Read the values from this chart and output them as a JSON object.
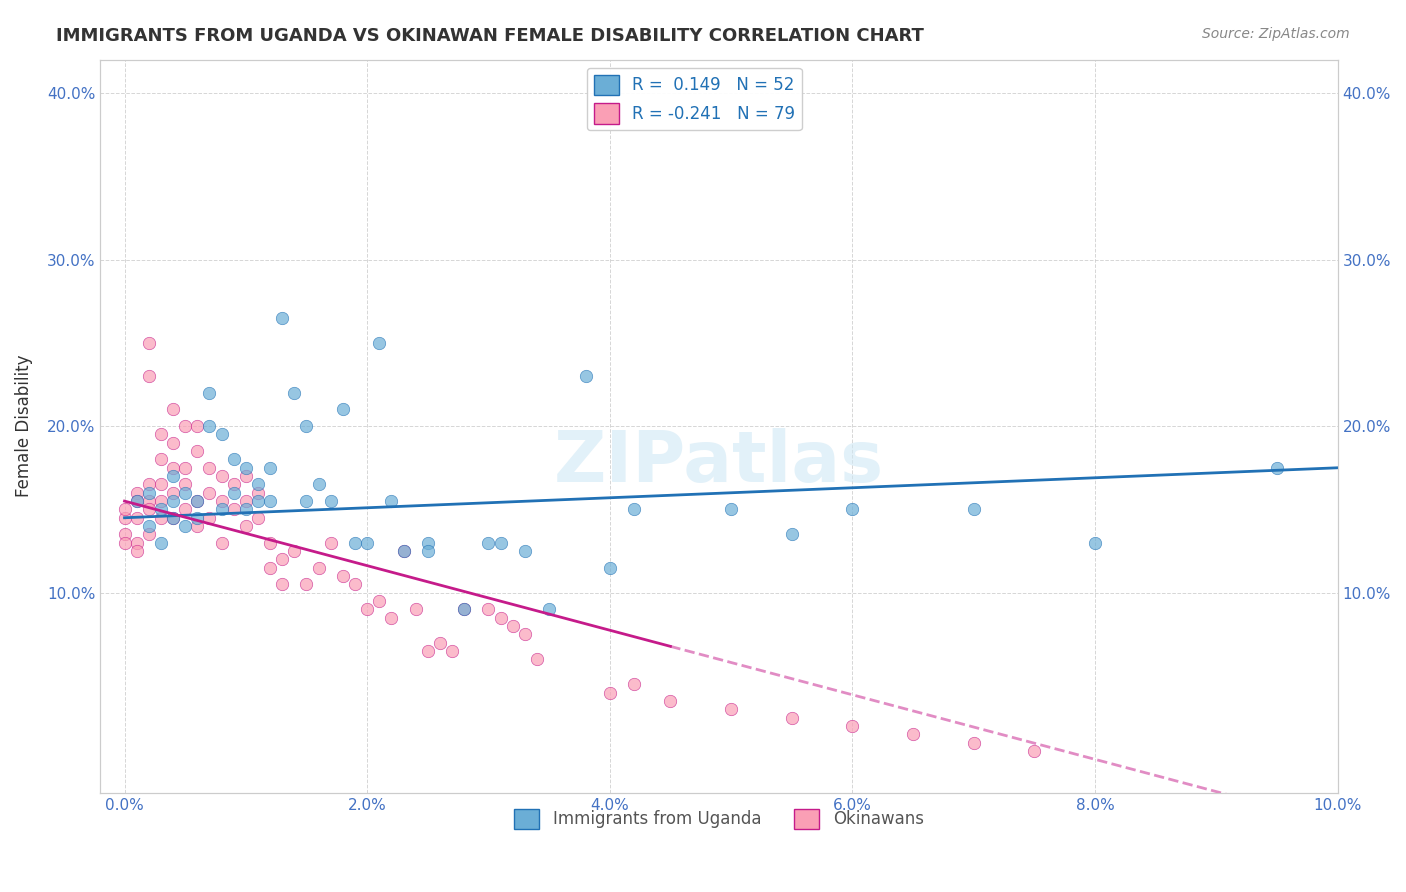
{
  "title": "IMMIGRANTS FROM UGANDA VS OKINAWAN FEMALE DISABILITY CORRELATION CHART",
  "source": "Source: ZipAtlas.com",
  "xlabel": "",
  "ylabel": "Female Disability",
  "xlim": [
    0.0,
    0.1
  ],
  "ylim": [
    0.0,
    0.42
  ],
  "yticks": [
    0.1,
    0.2,
    0.3,
    0.4
  ],
  "ytick_labels": [
    "10.0%",
    "20.0%",
    "30.0%",
    "40.0%"
  ],
  "xticks": [
    0.0,
    0.02,
    0.04,
    0.06,
    0.08,
    0.1
  ],
  "xtick_labels": [
    "0.0%",
    "2.0%",
    "4.0%",
    "6.0%",
    "8.0%",
    "10.0%"
  ],
  "watermark": "ZIPatlas",
  "legend_labels": [
    "Immigrants from Uganda",
    "Okinawans"
  ],
  "r_uganda": 0.149,
  "n_uganda": 52,
  "r_okinawan": -0.241,
  "n_okinawan": 79,
  "uganda_color": "#6baed6",
  "okinawan_color": "#fa9fb5",
  "uganda_color_dark": "#2171b5",
  "okinawan_color_dark": "#c51b8a",
  "uganda_scatter": {
    "x": [
      0.001,
      0.002,
      0.002,
      0.003,
      0.003,
      0.004,
      0.004,
      0.004,
      0.005,
      0.005,
      0.006,
      0.006,
      0.007,
      0.007,
      0.008,
      0.008,
      0.009,
      0.009,
      0.01,
      0.01,
      0.011,
      0.011,
      0.012,
      0.012,
      0.013,
      0.014,
      0.015,
      0.015,
      0.016,
      0.017,
      0.018,
      0.019,
      0.02,
      0.021,
      0.022,
      0.023,
      0.025,
      0.025,
      0.028,
      0.03,
      0.031,
      0.033,
      0.035,
      0.038,
      0.04,
      0.042,
      0.05,
      0.055,
      0.06,
      0.07,
      0.08,
      0.095
    ],
    "y": [
      0.155,
      0.16,
      0.14,
      0.15,
      0.13,
      0.145,
      0.155,
      0.17,
      0.14,
      0.16,
      0.155,
      0.145,
      0.2,
      0.22,
      0.195,
      0.15,
      0.18,
      0.16,
      0.175,
      0.15,
      0.165,
      0.155,
      0.155,
      0.175,
      0.265,
      0.22,
      0.2,
      0.155,
      0.165,
      0.155,
      0.21,
      0.13,
      0.13,
      0.25,
      0.155,
      0.125,
      0.13,
      0.125,
      0.09,
      0.13,
      0.13,
      0.125,
      0.09,
      0.23,
      0.115,
      0.15,
      0.15,
      0.135,
      0.15,
      0.15,
      0.13,
      0.175
    ]
  },
  "okinawan_scatter": {
    "x": [
      0.0,
      0.0,
      0.0,
      0.0,
      0.001,
      0.001,
      0.001,
      0.001,
      0.001,
      0.002,
      0.002,
      0.002,
      0.002,
      0.002,
      0.002,
      0.003,
      0.003,
      0.003,
      0.003,
      0.003,
      0.004,
      0.004,
      0.004,
      0.004,
      0.004,
      0.005,
      0.005,
      0.005,
      0.005,
      0.006,
      0.006,
      0.006,
      0.006,
      0.007,
      0.007,
      0.007,
      0.008,
      0.008,
      0.008,
      0.009,
      0.009,
      0.01,
      0.01,
      0.01,
      0.011,
      0.011,
      0.012,
      0.012,
      0.013,
      0.013,
      0.014,
      0.015,
      0.016,
      0.017,
      0.018,
      0.019,
      0.02,
      0.021,
      0.022,
      0.023,
      0.024,
      0.025,
      0.026,
      0.027,
      0.028,
      0.03,
      0.031,
      0.032,
      0.033,
      0.034,
      0.04,
      0.042,
      0.045,
      0.05,
      0.055,
      0.06,
      0.065,
      0.07,
      0.075
    ],
    "y": [
      0.145,
      0.15,
      0.135,
      0.13,
      0.16,
      0.155,
      0.145,
      0.13,
      0.125,
      0.25,
      0.23,
      0.165,
      0.155,
      0.15,
      0.135,
      0.195,
      0.18,
      0.165,
      0.155,
      0.145,
      0.21,
      0.19,
      0.175,
      0.16,
      0.145,
      0.2,
      0.175,
      0.165,
      0.15,
      0.2,
      0.185,
      0.155,
      0.14,
      0.175,
      0.16,
      0.145,
      0.17,
      0.155,
      0.13,
      0.165,
      0.15,
      0.17,
      0.155,
      0.14,
      0.16,
      0.145,
      0.13,
      0.115,
      0.12,
      0.105,
      0.125,
      0.105,
      0.115,
      0.13,
      0.11,
      0.105,
      0.09,
      0.095,
      0.085,
      0.125,
      0.09,
      0.065,
      0.07,
      0.065,
      0.09,
      0.09,
      0.085,
      0.08,
      0.075,
      0.06,
      0.04,
      0.045,
      0.035,
      0.03,
      0.025,
      0.02,
      0.015,
      0.01,
      0.005
    ]
  }
}
